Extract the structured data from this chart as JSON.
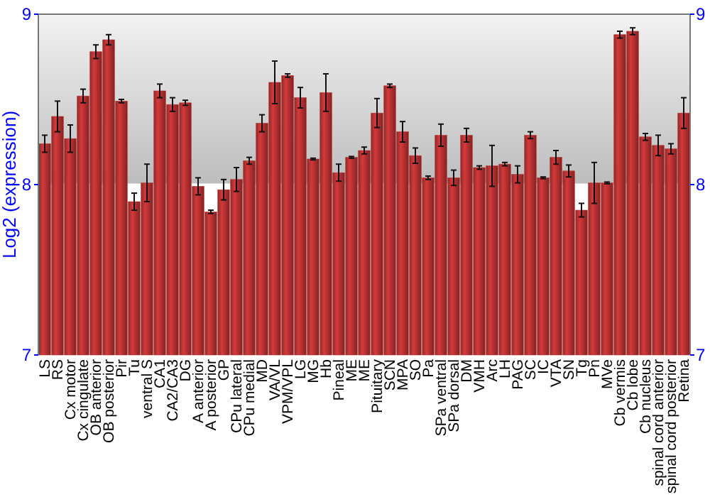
{
  "chart_data": {
    "type": "bar",
    "ylabel": "Log2 (expression)",
    "categories": [
      "LS",
      "RS",
      "Cx motor",
      "Cx cingulate",
      "OB anterior",
      "OB posterior",
      "Pir",
      "Tu",
      "ventral S",
      "CA1",
      "CA2/CA3",
      "DG",
      "A anterior",
      "A posterior",
      "GP",
      "CPu lateral",
      "CPu medial",
      "MD",
      "VA/VL",
      "VPM/VPL",
      "LG",
      "MG",
      "Hb",
      "Pineal",
      "ME",
      "ME",
      "Pituitary",
      "SCN",
      "MPA",
      "SO",
      "Pa",
      "SPa ventral",
      "SPa dorsal",
      "DM",
      "VMH",
      "Arc",
      "LH",
      "PAG",
      "SC",
      "IC",
      "VTA",
      "SN",
      "Tg",
      "Pn",
      "MVe",
      "Cb vermis",
      "Cb lobe",
      "Cb nucleus",
      "spinal cord anterior",
      "spinal cord posterior",
      "Retina"
    ],
    "values": [
      8.24,
      8.4,
      8.27,
      8.52,
      8.78,
      8.85,
      8.49,
      7.9,
      8.01,
      8.55,
      8.47,
      8.48,
      7.99,
      7.84,
      7.97,
      8.03,
      8.14,
      8.36,
      8.6,
      8.64,
      8.51,
      8.15,
      8.54,
      8.07,
      8.16,
      8.2,
      8.42,
      8.58,
      8.31,
      8.17,
      8.04,
      8.29,
      8.04,
      8.29,
      8.1,
      8.11,
      8.12,
      8.06,
      8.29,
      8.04,
      8.16,
      8.08,
      7.85,
      8.01,
      8.01,
      8.88,
      8.9,
      8.28,
      8.23,
      8.21,
      8.42
    ],
    "errors": [
      0.05,
      0.09,
      0.08,
      0.04,
      0.04,
      0.03,
      0.01,
      0.05,
      0.11,
      0.04,
      0.04,
      0.015,
      0.05,
      0.01,
      0.06,
      0.07,
      0.02,
      0.05,
      0.125,
      0.01,
      0.06,
      0.005,
      0.11,
      0.05,
      0.005,
      0.02,
      0.085,
      0.01,
      0.06,
      0.045,
      0.01,
      0.065,
      0.045,
      0.04,
      0.01,
      0.12,
      0.01,
      0.05,
      0.02,
      0.005,
      0.04,
      0.035,
      0.04,
      0.12,
      0.005,
      0.02,
      0.02,
      0.02,
      0.06,
      0.03,
      0.09
    ],
    "color": "#b83232",
    "ylim": [
      7,
      9
    ],
    "yticks": [
      7,
      8,
      9
    ],
    "y2lim": [
      7,
      9
    ],
    "y2ticks": [
      7,
      8,
      9
    ],
    "grid": "y"
  }
}
